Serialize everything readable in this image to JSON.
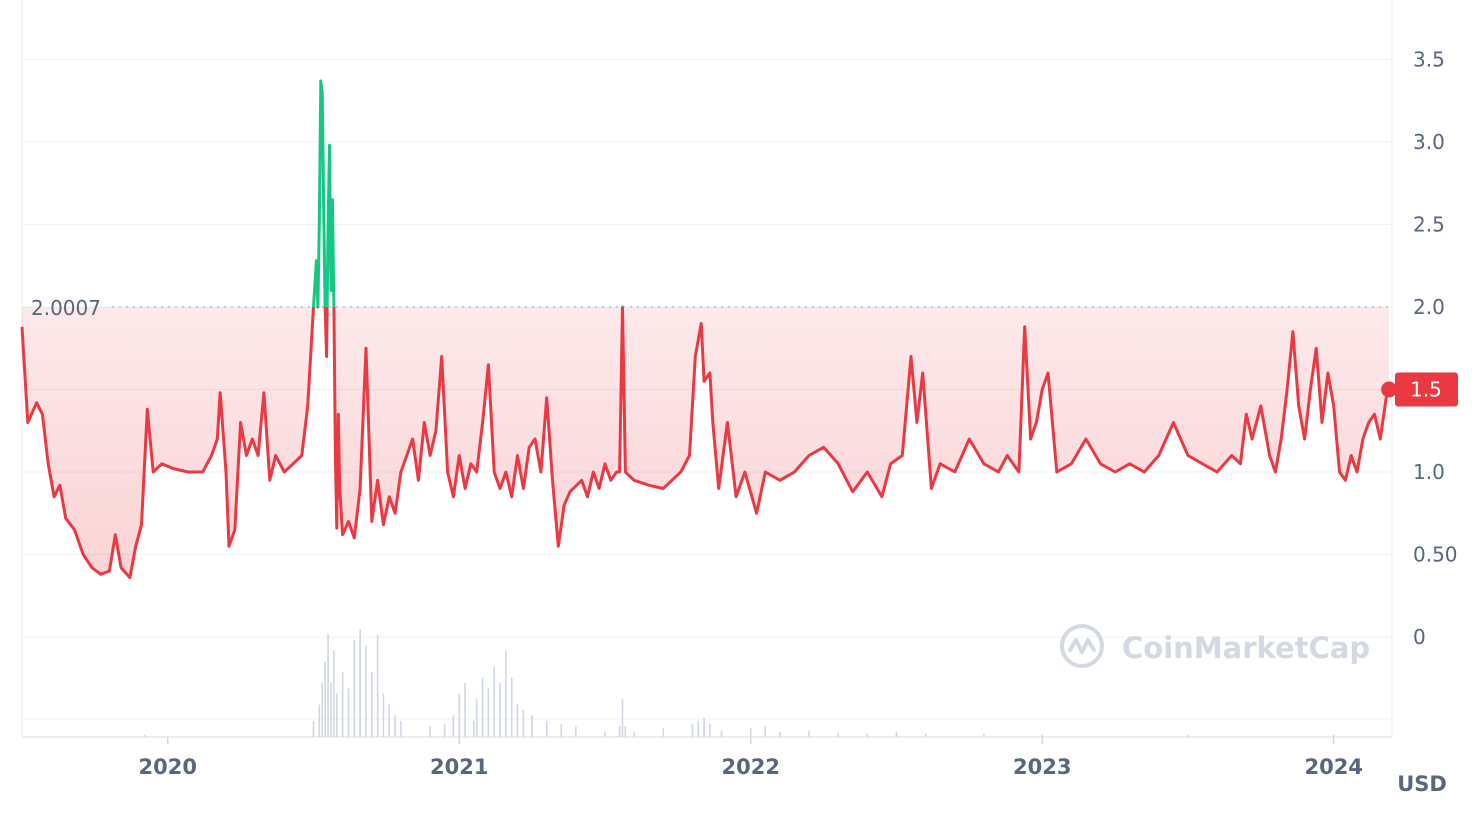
{
  "chart_data": {
    "type": "line",
    "currency_label": "USD",
    "watermark": "CoinMarketCap",
    "reference_line": {
      "value": 2.0007,
      "label": "2.0007"
    },
    "current": {
      "value": 1.5,
      "label": "1.5"
    },
    "y_ticks": [
      {
        "value": 0,
        "label": "0"
      },
      {
        "value": 0.5,
        "label": "0.50"
      },
      {
        "value": 1.0,
        "label": "1.0"
      },
      {
        "value": 1.5,
        "label": "1.5"
      },
      {
        "value": 2.0,
        "label": "2.0"
      },
      {
        "value": 2.5,
        "label": "2.5"
      },
      {
        "value": 3.0,
        "label": "3.0"
      },
      {
        "value": 3.5,
        "label": "3.5"
      }
    ],
    "ylim": [
      0,
      3.5
    ],
    "x_ticks": [
      {
        "value": 2020.0,
        "label": "2020"
      },
      {
        "value": 2021.0,
        "label": "2021"
      },
      {
        "value": 2022.0,
        "label": "2022"
      },
      {
        "value": 2023.0,
        "label": "2023"
      },
      {
        "value": 2024.0,
        "label": "2024"
      }
    ],
    "xlim": [
      2019.5,
      2024.2
    ],
    "grid": true,
    "colors": {
      "above": "#16c784",
      "below": "#ea3943",
      "grid": "#eff2f5",
      "text": "#58667e",
      "reference": "#b8bec8",
      "volume": "#cfd6e4",
      "watermark": "#d3d8e2"
    },
    "series": [
      {
        "points": [
          [
            2019.5,
            1.88
          ],
          [
            2019.52,
            1.3
          ],
          [
            2019.55,
            1.42
          ],
          [
            2019.57,
            1.35
          ],
          [
            2019.59,
            1.05
          ],
          [
            2019.61,
            0.85
          ],
          [
            2019.63,
            0.92
          ],
          [
            2019.65,
            0.72
          ],
          [
            2019.68,
            0.65
          ],
          [
            2019.71,
            0.5
          ],
          [
            2019.74,
            0.42
          ],
          [
            2019.77,
            0.38
          ],
          [
            2019.8,
            0.4
          ],
          [
            2019.82,
            0.62
          ],
          [
            2019.84,
            0.42
          ],
          [
            2019.87,
            0.36
          ],
          [
            2019.89,
            0.55
          ],
          [
            2019.91,
            0.68
          ],
          [
            2019.93,
            1.38
          ],
          [
            2019.95,
            1.0
          ],
          [
            2019.98,
            1.05
          ],
          [
            2020.02,
            1.02
          ],
          [
            2020.07,
            1.0
          ],
          [
            2020.12,
            1.0
          ],
          [
            2020.15,
            1.1
          ],
          [
            2020.17,
            1.2
          ],
          [
            2020.18,
            1.48
          ],
          [
            2020.2,
            1.0
          ],
          [
            2020.21,
            0.55
          ],
          [
            2020.23,
            0.65
          ],
          [
            2020.25,
            1.3
          ],
          [
            2020.27,
            1.1
          ],
          [
            2020.29,
            1.2
          ],
          [
            2020.31,
            1.1
          ],
          [
            2020.33,
            1.48
          ],
          [
            2020.35,
            0.95
          ],
          [
            2020.37,
            1.1
          ],
          [
            2020.4,
            1.0
          ],
          [
            2020.43,
            1.05
          ],
          [
            2020.46,
            1.1
          ],
          [
            2020.48,
            1.4
          ],
          [
            2020.5,
            2.0
          ],
          [
            2020.51,
            2.28
          ],
          [
            2020.515,
            2.0
          ],
          [
            2020.52,
            2.5
          ],
          [
            2020.525,
            3.37
          ],
          [
            2020.53,
            3.3
          ],
          [
            2020.535,
            2.6
          ],
          [
            2020.54,
            2.0
          ],
          [
            2020.545,
            1.7
          ],
          [
            2020.55,
            2.5
          ],
          [
            2020.555,
            2.98
          ],
          [
            2020.56,
            2.1
          ],
          [
            2020.565,
            2.65
          ],
          [
            2020.57,
            2.0
          ],
          [
            2020.575,
            1.1
          ],
          [
            2020.58,
            0.66
          ],
          [
            2020.585,
            1.35
          ],
          [
            2020.59,
            0.9
          ],
          [
            2020.6,
            0.62
          ],
          [
            2020.62,
            0.7
          ],
          [
            2020.64,
            0.6
          ],
          [
            2020.66,
            0.9
          ],
          [
            2020.68,
            1.75
          ],
          [
            2020.7,
            0.7
          ],
          [
            2020.72,
            0.95
          ],
          [
            2020.74,
            0.68
          ],
          [
            2020.76,
            0.85
          ],
          [
            2020.78,
            0.75
          ],
          [
            2020.8,
            1.0
          ],
          [
            2020.82,
            1.1
          ],
          [
            2020.84,
            1.2
          ],
          [
            2020.86,
            0.95
          ],
          [
            2020.88,
            1.3
          ],
          [
            2020.9,
            1.1
          ],
          [
            2020.92,
            1.25
          ],
          [
            2020.94,
            1.7
          ],
          [
            2020.96,
            1.0
          ],
          [
            2020.98,
            0.85
          ],
          [
            2021.0,
            1.1
          ],
          [
            2021.02,
            0.9
          ],
          [
            2021.04,
            1.05
          ],
          [
            2021.06,
            1.0
          ],
          [
            2021.08,
            1.3
          ],
          [
            2021.1,
            1.65
          ],
          [
            2021.12,
            1.0
          ],
          [
            2021.14,
            0.9
          ],
          [
            2021.16,
            1.0
          ],
          [
            2021.18,
            0.85
          ],
          [
            2021.2,
            1.1
          ],
          [
            2021.22,
            0.9
          ],
          [
            2021.24,
            1.15
          ],
          [
            2021.26,
            1.2
          ],
          [
            2021.28,
            1.0
          ],
          [
            2021.3,
            1.45
          ],
          [
            2021.32,
            0.95
          ],
          [
            2021.34,
            0.55
          ],
          [
            2021.36,
            0.8
          ],
          [
            2021.38,
            0.88
          ],
          [
            2021.42,
            0.95
          ],
          [
            2021.44,
            0.85
          ],
          [
            2021.46,
            1.0
          ],
          [
            2021.48,
            0.9
          ],
          [
            2021.5,
            1.05
          ],
          [
            2021.52,
            0.95
          ],
          [
            2021.54,
            1.0
          ],
          [
            2021.55,
            1.0
          ],
          [
            2021.56,
            2.0
          ],
          [
            2021.57,
            1.0
          ],
          [
            2021.6,
            0.95
          ],
          [
            2021.65,
            0.92
          ],
          [
            2021.7,
            0.9
          ],
          [
            2021.73,
            0.95
          ],
          [
            2021.76,
            1.0
          ],
          [
            2021.79,
            1.1
          ],
          [
            2021.81,
            1.7
          ],
          [
            2021.83,
            1.9
          ],
          [
            2021.84,
            1.55
          ],
          [
            2021.86,
            1.6
          ],
          [
            2021.87,
            1.3
          ],
          [
            2021.89,
            0.9
          ],
          [
            2021.92,
            1.3
          ],
          [
            2021.95,
            0.85
          ],
          [
            2021.98,
            1.0
          ],
          [
            2022.02,
            0.75
          ],
          [
            2022.05,
            1.0
          ],
          [
            2022.1,
            0.95
          ],
          [
            2022.15,
            1.0
          ],
          [
            2022.2,
            1.1
          ],
          [
            2022.25,
            1.15
          ],
          [
            2022.3,
            1.05
          ],
          [
            2022.35,
            0.88
          ],
          [
            2022.4,
            1.0
          ],
          [
            2022.45,
            0.85
          ],
          [
            2022.48,
            1.05
          ],
          [
            2022.52,
            1.1
          ],
          [
            2022.55,
            1.7
          ],
          [
            2022.57,
            1.3
          ],
          [
            2022.59,
            1.6
          ],
          [
            2022.62,
            0.9
          ],
          [
            2022.65,
            1.05
          ],
          [
            2022.7,
            1.0
          ],
          [
            2022.75,
            1.2
          ],
          [
            2022.8,
            1.05
          ],
          [
            2022.85,
            1.0
          ],
          [
            2022.88,
            1.1
          ],
          [
            2022.92,
            1.0
          ],
          [
            2022.94,
            1.88
          ],
          [
            2022.96,
            1.2
          ],
          [
            2022.98,
            1.3
          ],
          [
            2023.0,
            1.5
          ],
          [
            2023.02,
            1.6
          ],
          [
            2023.05,
            1.0
          ],
          [
            2023.1,
            1.05
          ],
          [
            2023.15,
            1.2
          ],
          [
            2023.2,
            1.05
          ],
          [
            2023.25,
            1.0
          ],
          [
            2023.3,
            1.05
          ],
          [
            2023.35,
            1.0
          ],
          [
            2023.4,
            1.1
          ],
          [
            2023.45,
            1.3
          ],
          [
            2023.5,
            1.1
          ],
          [
            2023.55,
            1.05
          ],
          [
            2023.6,
            1.0
          ],
          [
            2023.65,
            1.1
          ],
          [
            2023.68,
            1.05
          ],
          [
            2023.7,
            1.35
          ],
          [
            2023.72,
            1.2
          ],
          [
            2023.75,
            1.4
          ],
          [
            2023.78,
            1.1
          ],
          [
            2023.8,
            1.0
          ],
          [
            2023.82,
            1.2
          ],
          [
            2023.84,
            1.5
          ],
          [
            2023.86,
            1.85
          ],
          [
            2023.88,
            1.4
          ],
          [
            2023.9,
            1.2
          ],
          [
            2023.92,
            1.5
          ],
          [
            2023.94,
            1.75
          ],
          [
            2023.96,
            1.3
          ],
          [
            2023.98,
            1.6
          ],
          [
            2024.0,
            1.4
          ],
          [
            2024.02,
            1.0
          ],
          [
            2024.04,
            0.95
          ],
          [
            2024.06,
            1.1
          ],
          [
            2024.08,
            1.0
          ],
          [
            2024.1,
            1.2
          ],
          [
            2024.12,
            1.3
          ],
          [
            2024.14,
            1.35
          ],
          [
            2024.16,
            1.2
          ],
          [
            2024.18,
            1.45
          ],
          [
            2024.19,
            1.5
          ]
        ]
      }
    ],
    "volume": {
      "x": [
        2019.92,
        2020.5,
        2020.52,
        2020.53,
        2020.54,
        2020.55,
        2020.56,
        2020.57,
        2020.58,
        2020.6,
        2020.62,
        2020.64,
        2020.66,
        2020.68,
        2020.7,
        2020.72,
        2020.74,
        2020.76,
        2020.78,
        2020.8,
        2020.9,
        2020.95,
        2020.98,
        2021.0,
        2021.02,
        2021.05,
        2021.06,
        2021.08,
        2021.1,
        2021.12,
        2021.14,
        2021.16,
        2021.18,
        2021.2,
        2021.22,
        2021.25,
        2021.3,
        2021.35,
        2021.4,
        2021.5,
        2021.55,
        2021.56,
        2021.57,
        2021.6,
        2021.7,
        2021.8,
        2021.82,
        2021.84,
        2021.86,
        2021.9,
        2022.0,
        2022.05,
        2022.1,
        2022.2,
        2022.3,
        2022.4,
        2022.5,
        2022.6,
        2022.8,
        2023.0,
        2023.5,
        2024.0
      ],
      "values": [
        0.02,
        0.15,
        0.3,
        0.5,
        0.7,
        0.95,
        0.5,
        0.8,
        0.4,
        0.6,
        0.45,
        0.9,
        1.0,
        0.85,
        0.6,
        0.95,
        0.4,
        0.3,
        0.2,
        0.15,
        0.1,
        0.12,
        0.2,
        0.4,
        0.5,
        0.15,
        0.35,
        0.55,
        0.45,
        0.65,
        0.5,
        0.8,
        0.55,
        0.3,
        0.25,
        0.2,
        0.15,
        0.12,
        0.1,
        0.05,
        0.1,
        0.35,
        0.1,
        0.05,
        0.08,
        0.12,
        0.15,
        0.18,
        0.12,
        0.06,
        0.08,
        0.1,
        0.05,
        0.06,
        0.04,
        0.03,
        0.05,
        0.03,
        0.03,
        0.02,
        0.02,
        0.02
      ]
    }
  }
}
